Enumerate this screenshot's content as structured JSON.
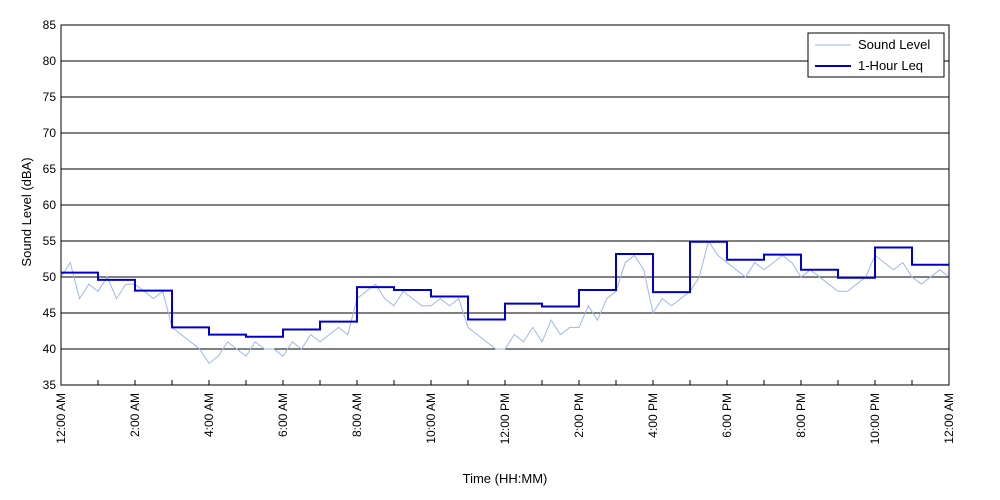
{
  "chart_data": {
    "type": "line",
    "xlabel": "Time (HH:MM)",
    "ylabel": "Sound Level (dBA)",
    "ylim": [
      35,
      85
    ],
    "xlim": [
      0,
      24
    ],
    "y_ticks": [
      35,
      40,
      45,
      50,
      55,
      60,
      65,
      70,
      75,
      80,
      85
    ],
    "x_tick_labels": [
      "12:00 AM",
      "2:00 AM",
      "4:00 AM",
      "6:00 AM",
      "8:00 AM",
      "10:00 AM",
      "12:00 PM",
      "2:00 PM",
      "4:00 PM",
      "6:00 PM",
      "8:00 PM",
      "10:00 PM",
      "12:00 AM"
    ],
    "x_tick_hours": [
      0,
      2,
      4,
      6,
      8,
      10,
      12,
      14,
      16,
      18,
      20,
      22,
      24
    ],
    "grid": true,
    "legend": "top-right",
    "series": [
      {
        "name": "Sound Level",
        "color": "#9fb6f0",
        "style": "thin",
        "x": [
          0,
          0.25,
          0.5,
          0.75,
          1,
          1.25,
          1.5,
          1.75,
          2,
          2.25,
          2.5,
          2.75,
          3,
          3.25,
          3.5,
          3.75,
          4,
          4.25,
          4.5,
          4.75,
          5,
          5.25,
          5.5,
          5.75,
          6,
          6.25,
          6.5,
          6.75,
          7,
          7.25,
          7.5,
          7.75,
          8,
          8.25,
          8.5,
          8.75,
          9,
          9.25,
          9.5,
          9.75,
          10,
          10.25,
          10.5,
          10.75,
          11,
          11.25,
          11.5,
          11.75,
          12,
          12.25,
          12.5,
          12.75,
          13,
          13.25,
          13.5,
          13.75,
          14,
          14.25,
          14.5,
          14.75,
          15,
          15.25,
          15.5,
          15.75,
          16,
          16.25,
          16.5,
          16.75,
          17,
          17.25,
          17.5,
          17.75,
          18,
          18.25,
          18.5,
          18.75,
          19,
          19.25,
          19.5,
          19.75,
          20,
          20.25,
          20.5,
          20.75,
          21,
          21.25,
          21.5,
          21.75,
          22,
          22.25,
          22.5,
          22.75,
          23,
          23.25,
          23.5,
          23.75,
          24
        ],
        "y": [
          50,
          52,
          47,
          49,
          48,
          50,
          47,
          49,
          49,
          48,
          47,
          48,
          43,
          42,
          41,
          40,
          38,
          39,
          41,
          40,
          39,
          41,
          40,
          40,
          39,
          41,
          40,
          42,
          41,
          42,
          43,
          42,
          47,
          48,
          49,
          47,
          46,
          48,
          47,
          46,
          46,
          47,
          46,
          47,
          43,
          42,
          41,
          40,
          40,
          42,
          41,
          43,
          41,
          44,
          42,
          43,
          43,
          46,
          44,
          47,
          48,
          52,
          53,
          51,
          45,
          47,
          46,
          47,
          48,
          50,
          55,
          53,
          52,
          51,
          50,
          52,
          51,
          52,
          53,
          52,
          50,
          51,
          50,
          49,
          48,
          48,
          49,
          50,
          53,
          52,
          51,
          52,
          50,
          49,
          50,
          51,
          50
        ]
      },
      {
        "name": "1-Hour Leq",
        "color": "#0000cc",
        "style": "step",
        "x": [
          0,
          1,
          2,
          3,
          4,
          5,
          6,
          7,
          8,
          9,
          10,
          11,
          12,
          13,
          14,
          15,
          16,
          17,
          18,
          19,
          20,
          21,
          22,
          23,
          24
        ],
        "y": [
          50.6,
          49.6,
          48.1,
          43.0,
          42.0,
          41.7,
          42.7,
          43.8,
          48.6,
          48.2,
          47.3,
          44.1,
          46.3,
          45.9,
          48.2,
          53.2,
          47.9,
          54.9,
          52.4,
          53.1,
          51.0,
          49.9,
          54.1,
          51.7,
          51.7
        ]
      }
    ]
  }
}
